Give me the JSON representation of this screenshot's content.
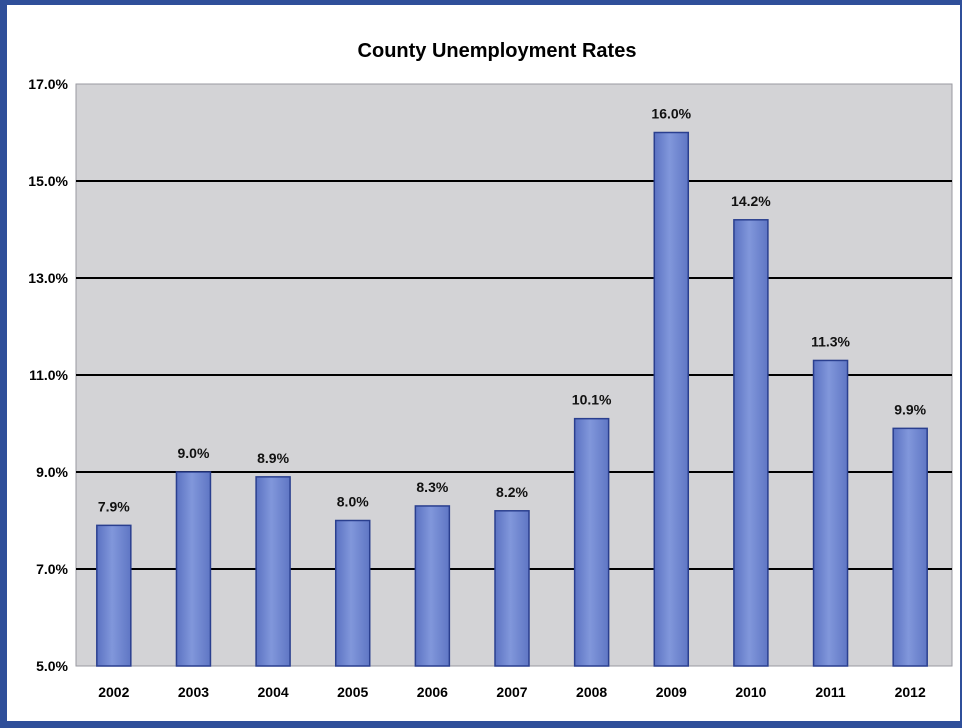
{
  "chart_data": {
    "type": "bar",
    "title": "County Unemployment Rates",
    "xlabel": "",
    "ylabel": "",
    "categories": [
      "2002",
      "2003",
      "2004",
      "2005",
      "2006",
      "2007",
      "2008",
      "2009",
      "2010",
      "2011",
      "2012"
    ],
    "values": [
      7.9,
      9.0,
      8.9,
      8.0,
      8.3,
      8.2,
      10.1,
      16.0,
      14.2,
      11.3,
      9.9
    ],
    "data_labels": [
      "7.9%",
      "9.0%",
      "8.9%",
      "8.0%",
      "8.3%",
      "8.2%",
      "10.1%",
      "16.0%",
      "14.2%",
      "11.3%",
      "9.9%"
    ],
    "ylim": [
      5.0,
      17.0
    ],
    "yticks": [
      5.0,
      7.0,
      9.0,
      11.0,
      13.0,
      15.0,
      17.0
    ],
    "ytick_labels": [
      "5.0%",
      "7.0%",
      "9.0%",
      "11.0%",
      "13.0%",
      "15.0%",
      "17.0%"
    ],
    "grid": true,
    "legend": "none",
    "colors": {
      "bar_fill": "#6f86cf",
      "bar_edge": "#2a3f8f",
      "plot_background": "#d3d3d6",
      "gridline": "#000000",
      "frame": "#2f4f9a"
    }
  }
}
